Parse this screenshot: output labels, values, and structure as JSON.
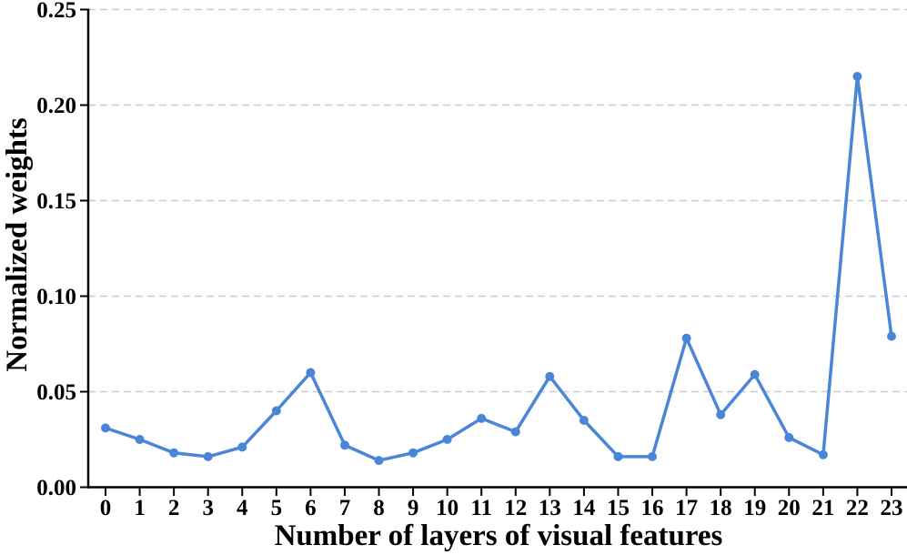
{
  "chart_data": {
    "type": "line",
    "title": "",
    "xlabel": "Number of layers of visual features",
    "ylabel": "Normalized weights",
    "x": [
      0,
      1,
      2,
      3,
      4,
      5,
      6,
      7,
      8,
      9,
      10,
      11,
      12,
      13,
      14,
      15,
      16,
      17,
      18,
      19,
      20,
      21,
      22,
      23
    ],
    "xtick_labels": [
      "0",
      "1",
      "2",
      "3",
      "4",
      "5",
      "6",
      "7",
      "8",
      "9",
      "10",
      "11",
      "12",
      "13",
      "14",
      "15",
      "16",
      "17",
      "18",
      "19",
      "20",
      "21",
      "22",
      "23"
    ],
    "values": [
      0.031,
      0.025,
      0.018,
      0.016,
      0.021,
      0.04,
      0.06,
      0.022,
      0.014,
      0.018,
      0.025,
      0.036,
      0.029,
      0.058,
      0.035,
      0.016,
      0.016,
      0.078,
      0.038,
      0.059,
      0.026,
      0.017,
      0.215,
      0.079
    ],
    "ylim": [
      0.0,
      0.25
    ],
    "yticks": [
      0.0,
      0.05,
      0.1,
      0.15,
      0.2,
      0.25
    ],
    "ytick_labels": [
      "0.00",
      "0.05",
      "0.10",
      "0.15",
      "0.20",
      "0.25"
    ],
    "series_name": "normalized-weight-per-layer",
    "marker": "circle",
    "grid": "horizontal-dashed",
    "legend": "none",
    "colors": {
      "line": "#4a86d8",
      "marker": "#4a86d8",
      "grid": "#cccccc",
      "axis": "#000000",
      "text": "#000000",
      "background": "#ffffff"
    }
  }
}
